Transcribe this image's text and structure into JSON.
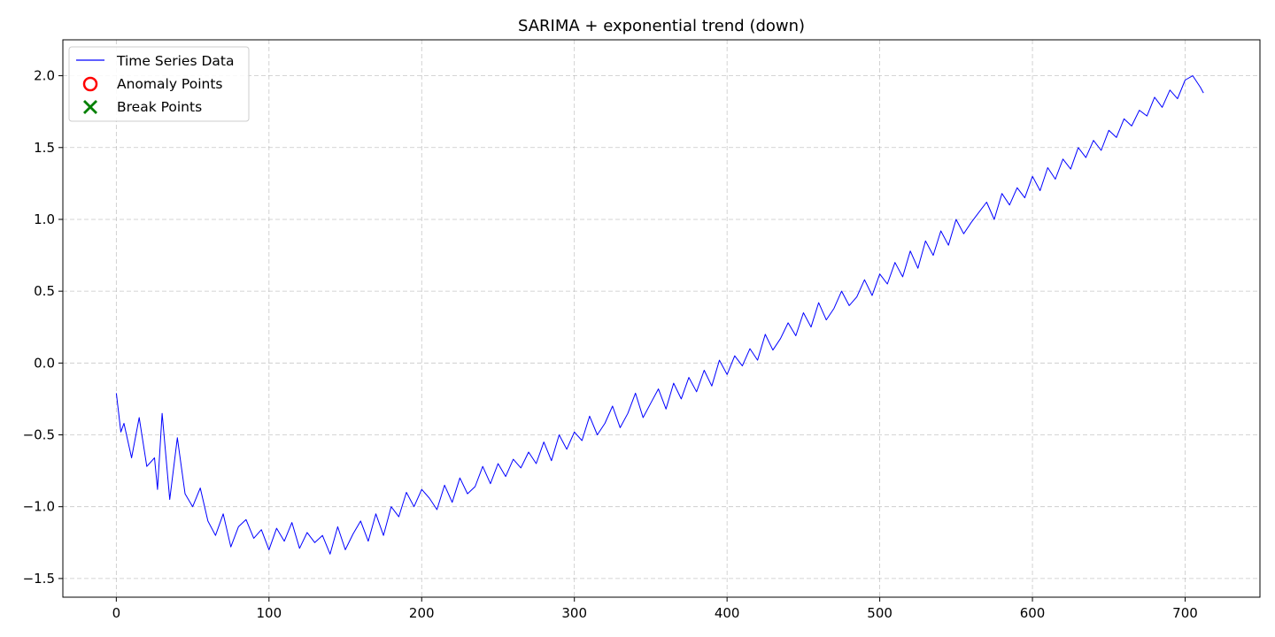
{
  "chart_data": {
    "type": "line",
    "title": "SARIMA + exponential trend (down)",
    "xlabel": "",
    "ylabel": "",
    "xlim": [
      -35,
      749
    ],
    "ylim": [
      -1.63,
      2.25
    ],
    "x_ticks": [
      0,
      100,
      200,
      300,
      400,
      500,
      600,
      700
    ],
    "x_tick_labels": [
      "0",
      "100",
      "200",
      "300",
      "400",
      "500",
      "600",
      "700"
    ],
    "y_ticks": [
      -1.5,
      -1.0,
      -0.5,
      0.0,
      0.5,
      1.0,
      1.5,
      2.0
    ],
    "y_tick_labels": [
      "−1.5",
      "−1.0",
      "−0.5",
      "0.0",
      "0.5",
      "1.0",
      "1.5",
      "2.0"
    ],
    "grid": true,
    "legend_position": "top-left",
    "series": [
      {
        "name": "Time Series Data",
        "kind": "line",
        "color": "#0000ff",
        "x": [
          0,
          3,
          5,
          10,
          15,
          20,
          25,
          27,
          30,
          35,
          40,
          45,
          50,
          55,
          60,
          65,
          70,
          75,
          80,
          85,
          90,
          95,
          100,
          105,
          110,
          115,
          120,
          125,
          130,
          135,
          140,
          145,
          150,
          155,
          160,
          165,
          170,
          175,
          180,
          185,
          190,
          195,
          200,
          205,
          210,
          215,
          220,
          225,
          230,
          235,
          240,
          245,
          250,
          255,
          260,
          265,
          270,
          275,
          280,
          285,
          290,
          295,
          300,
          305,
          310,
          315,
          320,
          325,
          330,
          335,
          340,
          345,
          350,
          355,
          360,
          365,
          370,
          375,
          380,
          385,
          390,
          395,
          400,
          405,
          410,
          415,
          420,
          425,
          430,
          435,
          440,
          445,
          450,
          455,
          460,
          465,
          470,
          475,
          480,
          485,
          490,
          495,
          500,
          505,
          510,
          515,
          520,
          525,
          530,
          535,
          540,
          545,
          550,
          555,
          560,
          565,
          570,
          575,
          580,
          585,
          590,
          595,
          600,
          605,
          610,
          615,
          620,
          625,
          630,
          635,
          640,
          645,
          650,
          655,
          660,
          665,
          670,
          675,
          680,
          685,
          690,
          695,
          700,
          705,
          710,
          712
        ],
        "values": [
          -0.21,
          -0.48,
          -0.42,
          -0.66,
          -0.38,
          -0.72,
          -0.66,
          -0.88,
          -0.35,
          -0.95,
          -0.52,
          -0.91,
          -1.0,
          -0.87,
          -1.1,
          -1.2,
          -1.05,
          -1.28,
          -1.14,
          -1.09,
          -1.22,
          -1.16,
          -1.3,
          -1.15,
          -1.24,
          -1.11,
          -1.29,
          -1.18,
          -1.25,
          -1.2,
          -1.33,
          -1.14,
          -1.3,
          -1.19,
          -1.1,
          -1.24,
          -1.05,
          -1.2,
          -1.0,
          -1.07,
          -0.9,
          -1.0,
          -0.88,
          -0.94,
          -1.02,
          -0.85,
          -0.97,
          -0.8,
          -0.91,
          -0.86,
          -0.72,
          -0.84,
          -0.7,
          -0.79,
          -0.67,
          -0.73,
          -0.62,
          -0.7,
          -0.55,
          -0.68,
          -0.5,
          -0.6,
          -0.48,
          -0.54,
          -0.37,
          -0.5,
          -0.42,
          -0.3,
          -0.45,
          -0.35,
          -0.21,
          -0.38,
          -0.28,
          -0.18,
          -0.32,
          -0.14,
          -0.25,
          -0.1,
          -0.2,
          -0.05,
          -0.16,
          0.02,
          -0.08,
          0.05,
          -0.02,
          0.1,
          0.02,
          0.2,
          0.09,
          0.17,
          0.28,
          0.19,
          0.35,
          0.25,
          0.42,
          0.3,
          0.38,
          0.5,
          0.4,
          0.46,
          0.58,
          0.47,
          0.62,
          0.55,
          0.7,
          0.6,
          0.78,
          0.66,
          0.85,
          0.75,
          0.92,
          0.82,
          1.0,
          0.9,
          0.98,
          1.05,
          1.12,
          1.0,
          1.18,
          1.1,
          1.22,
          1.15,
          1.3,
          1.2,
          1.36,
          1.28,
          1.42,
          1.35,
          1.5,
          1.43,
          1.55,
          1.48,
          1.62,
          1.57,
          1.7,
          1.65,
          1.76,
          1.72,
          1.85,
          1.78,
          1.9,
          1.84,
          1.97,
          2.0,
          1.92,
          1.88
        ]
      },
      {
        "name": "Anomaly Points",
        "kind": "scatter-circle",
        "color": "#ff0000",
        "points": []
      },
      {
        "name": "Break Points",
        "kind": "scatter-x",
        "color": "#008000",
        "points": []
      }
    ]
  }
}
